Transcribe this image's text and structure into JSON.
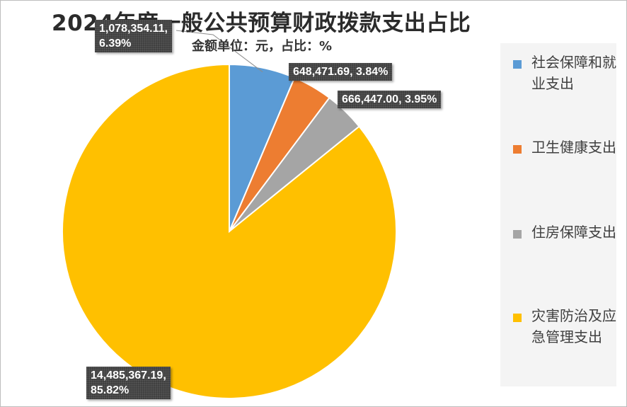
{
  "chart_data": {
    "type": "pie",
    "title": "2024年度一般公共预算财政拨款支出占比",
    "subtitle": "金额单位：元，占比：%",
    "legend_position": "right",
    "series": [
      {
        "name": "社会保障和就业支出",
        "value": 1078354.11,
        "value_label": "1,078,354.11,",
        "percent_label": "6.39%",
        "percent": 6.39,
        "color": "#5b9bd5"
      },
      {
        "name": "卫生健康支出",
        "value": 648471.69,
        "value_label": "648,471.69,",
        "percent_label": "3.84%",
        "percent": 3.84,
        "color": "#ed7d31"
      },
      {
        "name": "住房保障支出",
        "value": 666447.0,
        "value_label": "666,447.00,",
        "percent_label": "3.95%",
        "percent": 3.95,
        "color": "#a5a5a5"
      },
      {
        "name": "灾害防治及应急管理支出",
        "value": 14485367.19,
        "value_label": "14,485,367.19,",
        "percent_label": "85.82%",
        "percent": 85.82,
        "color": "#ffc000"
      }
    ]
  }
}
